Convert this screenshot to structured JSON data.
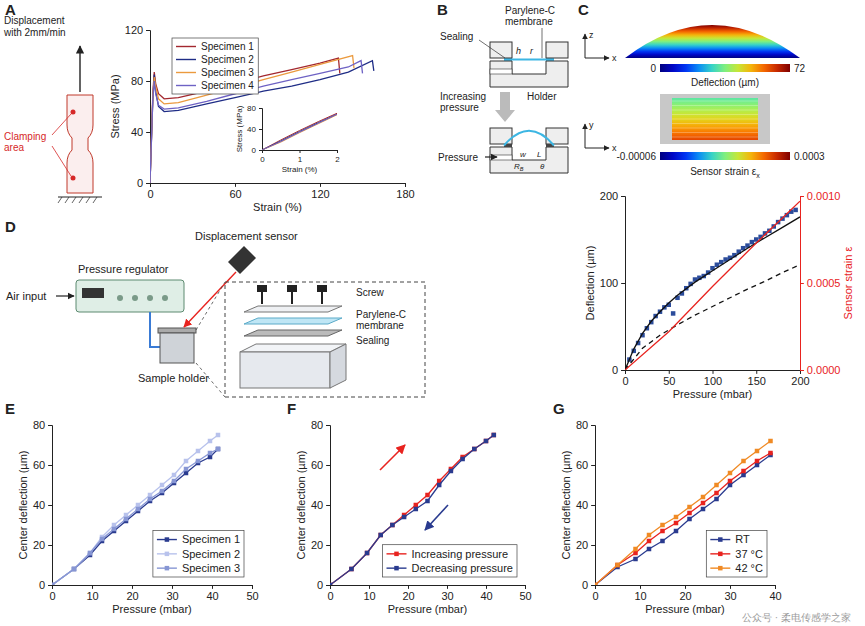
{
  "panel_labels": [
    "A",
    "B",
    "C",
    "D",
    "E",
    "F",
    "G"
  ],
  "chart_data": [
    {
      "type": "line",
      "x_label": "Strain (%)",
      "y_label": "Stress (MPa)",
      "xlim": [
        0,
        180
      ],
      "xticks": [
        0,
        60,
        120,
        180
      ],
      "ylim": [
        0,
        120
      ],
      "yticks": [
        0,
        40,
        80,
        120
      ],
      "legend": "upper left",
      "series": [
        {
          "name": "Specimen 1",
          "color": "#a3282f",
          "x": [
            0,
            1,
            2,
            3,
            4,
            6,
            10,
            20,
            40,
            60,
            80,
            100,
            120,
            133,
            134
          ],
          "values": [
            0,
            35,
            70,
            87,
            78,
            70,
            66,
            67,
            72,
            78,
            84,
            89,
            94,
            98,
            86
          ]
        },
        {
          "name": "Specimen 2",
          "color": "#1f2d86",
          "x": [
            0,
            1,
            2,
            3,
            4,
            6,
            10,
            20,
            40,
            60,
            80,
            100,
            120,
            140,
            157,
            158
          ],
          "values": [
            0,
            33,
            66,
            85,
            72,
            60,
            56,
            57,
            62,
            67,
            72,
            76,
            81,
            87,
            96,
            88
          ]
        },
        {
          "name": "Specimen 3",
          "color": "#eb9a3e",
          "x": [
            0,
            1,
            2,
            3,
            4,
            6,
            10,
            20,
            40,
            60,
            80,
            100,
            120,
            143,
            144
          ],
          "values": [
            0,
            34,
            68,
            83,
            76,
            66,
            62,
            63,
            69,
            75,
            81,
            87,
            93,
            100,
            90
          ]
        },
        {
          "name": "Specimen 4",
          "color": "#6e62c4",
          "x": [
            0,
            1,
            2,
            3,
            4,
            6,
            10,
            20,
            40,
            60,
            80,
            100,
            120,
            140,
            149,
            150
          ],
          "values": [
            0,
            33,
            66,
            80,
            70,
            61,
            58,
            59,
            64,
            70,
            76,
            81,
            86,
            91,
            96,
            86
          ]
        }
      ]
    },
    {
      "type": "line",
      "x_label": "Strain (%)",
      "y_label": "Stress (MPa)",
      "xlim": [
        0,
        2
      ],
      "xticks": [
        0,
        1,
        2
      ],
      "ylim": [
        0,
        80
      ],
      "yticks": [
        0,
        40,
        80
      ],
      "series": [
        {
          "color": "#a3282f",
          "x": [
            0,
            0.5,
            1,
            1.5,
            2
          ],
          "values": [
            0,
            19,
            37,
            54,
            70
          ]
        },
        {
          "color": "#1f2d86",
          "x": [
            0,
            0.5,
            1,
            1.5,
            2
          ],
          "values": [
            0,
            17,
            35,
            52,
            68
          ]
        },
        {
          "color": "#eb9a3e",
          "x": [
            0,
            0.5,
            1,
            1.5,
            2
          ],
          "values": [
            0,
            15,
            33,
            50,
            67
          ]
        },
        {
          "color": "#6e62c4",
          "x": [
            0,
            0.5,
            1,
            1.5,
            2
          ],
          "values": [
            0,
            16,
            34,
            51,
            68
          ]
        }
      ]
    },
    {
      "type": "line",
      "x_label": "Pressure (mbar)",
      "y_label": "Deflection (µm)",
      "y2_label": "Sensor strain ε",
      "xlim": [
        0,
        200
      ],
      "xticks": [
        0,
        50,
        100,
        150,
        200
      ],
      "ylim": [
        0,
        200
      ],
      "yticks": [
        0,
        100,
        200
      ],
      "y2lim": [
        0,
        0.001
      ],
      "y2ticks": [
        {
          "value": 0,
          "label": "0.0000"
        },
        {
          "value": 0.0005,
          "label": "0.0005"
        },
        {
          "value": 0.001,
          "label": "0.0010"
        }
      ],
      "series": [
        {
          "type": "scatter",
          "color": "#2b4c9b",
          "marker": "square",
          "x": [
            5,
            10,
            15,
            20,
            25,
            30,
            35,
            40,
            45,
            50,
            55,
            60,
            65,
            70,
            75,
            80,
            85,
            90,
            95,
            100,
            105,
            110,
            115,
            120,
            125,
            130,
            135,
            140,
            145,
            150,
            155,
            160,
            165,
            170,
            175,
            180,
            185,
            190,
            195
          ],
          "values": [
            12,
            22,
            31,
            40,
            48,
            55,
            62,
            67,
            72,
            75,
            65,
            83,
            88,
            94,
            99,
            104,
            106,
            108,
            112,
            117,
            121,
            124,
            127,
            129,
            132,
            136,
            140,
            143,
            147,
            150,
            153,
            157,
            160,
            165,
            170,
            174,
            178,
            182,
            184
          ]
        },
        {
          "type": "line",
          "color": "#111111",
          "line_style": "solid",
          "x": [
            0,
            10,
            20,
            30,
            40,
            50,
            60,
            80,
            100,
            120,
            140,
            160,
            180,
            200
          ],
          "values": [
            0,
            24,
            42,
            56,
            67,
            77,
            86,
            101,
            114,
            127,
            140,
            152,
            164,
            176
          ]
        },
        {
          "type": "line",
          "color": "#111111",
          "line_style": "dashed",
          "x": [
            0,
            20,
            40,
            60,
            80,
            100,
            120,
            140,
            160,
            180,
            200
          ],
          "values": [
            0,
            25,
            40,
            52,
            63,
            73,
            83,
            93,
            102,
            112,
            121
          ]
        },
        {
          "type": "line",
          "color": "#e8231f",
          "line_style": "solid",
          "axis": "y2",
          "x": [
            0,
            50,
            100,
            150,
            200
          ],
          "values": [
            0,
            0.00022,
            0.00048,
            0.00073,
            0.00097
          ]
        }
      ]
    },
    {
      "type": "line",
      "x_label": "Pressure (mbar)",
      "y_label": "Center deflection (µm)",
      "xlim": [
        0,
        50
      ],
      "xticks": [
        0,
        10,
        20,
        30,
        40,
        50
      ],
      "ylim": [
        0,
        80
      ],
      "yticks": [
        0,
        20,
        40,
        60,
        80
      ],
      "legend": "lower right",
      "x": [
        0,
        5.5,
        9.5,
        12.5,
        15.5,
        18.5,
        21.5,
        24.5,
        27.5,
        30.5,
        33.5,
        36.5,
        39.5,
        41.5
      ],
      "series": [
        {
          "name": "Specimen 1",
          "color": "#2a3b8f",
          "marker": "square",
          "line_style": "solid",
          "values": [
            0,
            8,
            15,
            22,
            27,
            32,
            37,
            42,
            46,
            51,
            56,
            61,
            64,
            68
          ]
        },
        {
          "name": "Specimen 2",
          "color": "#b8c2ec",
          "marker": "square",
          "line_style": "solid",
          "values": [
            0,
            8,
            16,
            24,
            30,
            35,
            40,
            45,
            50,
            55,
            62,
            67,
            72,
            75
          ]
        },
        {
          "name": "Specimen 3",
          "color": "#8796d4",
          "marker": "square",
          "line_style": "solid",
          "values": [
            0,
            8,
            16,
            23,
            28,
            33,
            38,
            43,
            47,
            52,
            58,
            62,
            66,
            68
          ]
        }
      ]
    },
    {
      "type": "line",
      "x_label": "Pressure (mbar)",
      "y_label": "Center deflection (µm)",
      "xlim": [
        0,
        50
      ],
      "xticks": [
        0,
        10,
        20,
        30,
        40,
        50
      ],
      "ylim": [
        0,
        80
      ],
      "yticks": [
        0,
        20,
        40,
        60,
        80
      ],
      "legend": "lower right",
      "x": [
        0,
        5.5,
        9.5,
        13,
        16,
        19,
        22,
        25,
        28,
        31,
        34,
        37,
        40,
        42
      ],
      "series": [
        {
          "name": "Increasing pressure",
          "color": "#e8231f",
          "marker": "square",
          "line_style": "solid",
          "values": [
            0,
            8,
            16,
            25,
            30,
            35,
            40,
            45,
            52,
            58,
            64,
            68,
            72,
            75
          ]
        },
        {
          "name": "Decreasing pressure",
          "color": "#2a3b8f",
          "marker": "square",
          "line_style": "solid",
          "values": [
            0,
            8,
            16,
            25,
            30,
            34,
            38,
            42,
            50,
            57,
            63,
            68,
            72,
            75
          ]
        }
      ]
    },
    {
      "type": "line",
      "x_label": "Pressure (mbar)",
      "y_label": "Center deflection (µm)",
      "xlim": [
        0,
        40
      ],
      "xticks": [
        0,
        10,
        20,
        30,
        40
      ],
      "ylim": [
        0,
        80
      ],
      "yticks": [
        0,
        20,
        40,
        60,
        80
      ],
      "legend": "lower right",
      "x": [
        0,
        5,
        9,
        12,
        15,
        18,
        21,
        24,
        27,
        30,
        33,
        36,
        39
      ],
      "series": [
        {
          "name": "RT",
          "color": "#2a3b8f",
          "marker": "square",
          "line_style": "solid",
          "values": [
            0,
            9,
            13,
            18,
            22,
            27,
            33,
            38,
            43,
            50,
            55,
            60,
            65
          ]
        },
        {
          "name": "37 °C",
          "color": "#e8231f",
          "marker": "square",
          "line_style": "solid",
          "values": [
            0,
            10,
            16,
            22,
            27,
            31,
            36,
            41,
            46,
            52,
            57,
            62,
            66
          ]
        },
        {
          "name": "42 °C",
          "color": "#f08a24",
          "marker": "square",
          "line_style": "solid",
          "values": [
            0,
            10,
            18,
            25,
            30,
            34,
            39,
            44,
            50,
            56,
            62,
            67,
            72
          ]
        }
      ]
    }
  ],
  "diagrams": {
    "A": {
      "displacement": [
        "Displacement",
        "with 2mm/min"
      ],
      "clamping": [
        "Clamping",
        "area"
      ]
    },
    "B": {
      "sealing": "Sealing",
      "membrane": [
        "Parylene-C",
        "membrane"
      ],
      "h": "h",
      "r": "r",
      "holder": "Holder",
      "increasing": [
        "Increasing",
        "pressure"
      ],
      "pressure": "Pressure",
      "w": "w",
      "L": "L",
      "R": {
        "text": "R",
        "sub": "B"
      },
      "theta": "θ"
    },
    "C": {
      "axes_top": [
        "z",
        "x"
      ],
      "axes_bottom": [
        "y",
        "x"
      ],
      "colorbars": [
        {
          "label": "Deflection (µm)",
          "range": [
            0,
            72
          ],
          "ticks": [
            0,
            72
          ]
        },
        {
          "label": {
            "text": "Sensor strain ε",
            "sub": "x"
          },
          "range": [
            -6e-05,
            0.0003
          ],
          "ticks": [
            -6e-05,
            0.0003
          ]
        }
      ]
    },
    "D": {
      "displacement_sensor": "Displacement sensor",
      "pressure_regulator": "Pressure regulator",
      "air_input": "Air input",
      "sample_holder": "Sample holder",
      "screw": "Screw",
      "membrane": [
        "Parylene-C",
        "membrane"
      ],
      "sealing": "Sealing"
    }
  },
  "watermark": "公众号 · 柔电传感学之家"
}
